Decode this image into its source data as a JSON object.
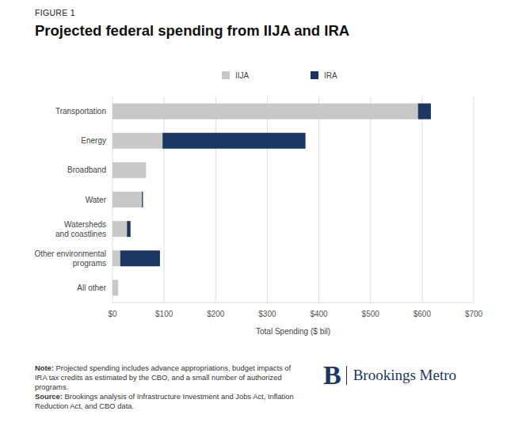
{
  "chart_data": {
    "type": "bar",
    "orientation": "horizontal",
    "stacked": true,
    "grid": true,
    "legend": "top",
    "subtitle": "FIGURE 1",
    "title": "Projected federal spending from IIJA and IRA",
    "x_label": "Total Spending ($ bil)",
    "categories": [
      "Transportation",
      "Energy",
      "Broadband",
      "Water",
      "Watersheds and coastlines",
      "Other environmental programs",
      "All other"
    ],
    "series": [
      {
        "name": "IIJA",
        "color": "#c8c8c8",
        "values": [
          592,
          97,
          65,
          57,
          28,
          15,
          11
        ]
      },
      {
        "name": "IRA",
        "color": "#1c3664",
        "values": [
          25,
          277,
          0,
          2,
          7,
          77,
          0
        ]
      }
    ],
    "xlim": [
      0,
      700
    ],
    "xticks": [
      {
        "value": 0,
        "label": "$0"
      },
      {
        "value": 100,
        "label": "$100"
      },
      {
        "value": 200,
        "label": "$200"
      },
      {
        "value": 300,
        "label": "$300"
      },
      {
        "value": 400,
        "label": "$400"
      },
      {
        "value": 500,
        "label": "$500"
      },
      {
        "value": 600,
        "label": "$600"
      },
      {
        "value": 700,
        "label": "$700"
      }
    ],
    "notes": [
      {
        "label": "Note:",
        "text": "Projected spending includes advance appropriations, budget impacts of IRA tax credits as estimated by the CBO, and a small number of authorized programs."
      },
      {
        "label": "Source:",
        "text": "Brookings analysis of Infrastructure Investment and Jobs Act, Inflation Reduction Act, and CBO data."
      }
    ],
    "brand_mark": "B",
    "brand": "Brookings Metro"
  }
}
